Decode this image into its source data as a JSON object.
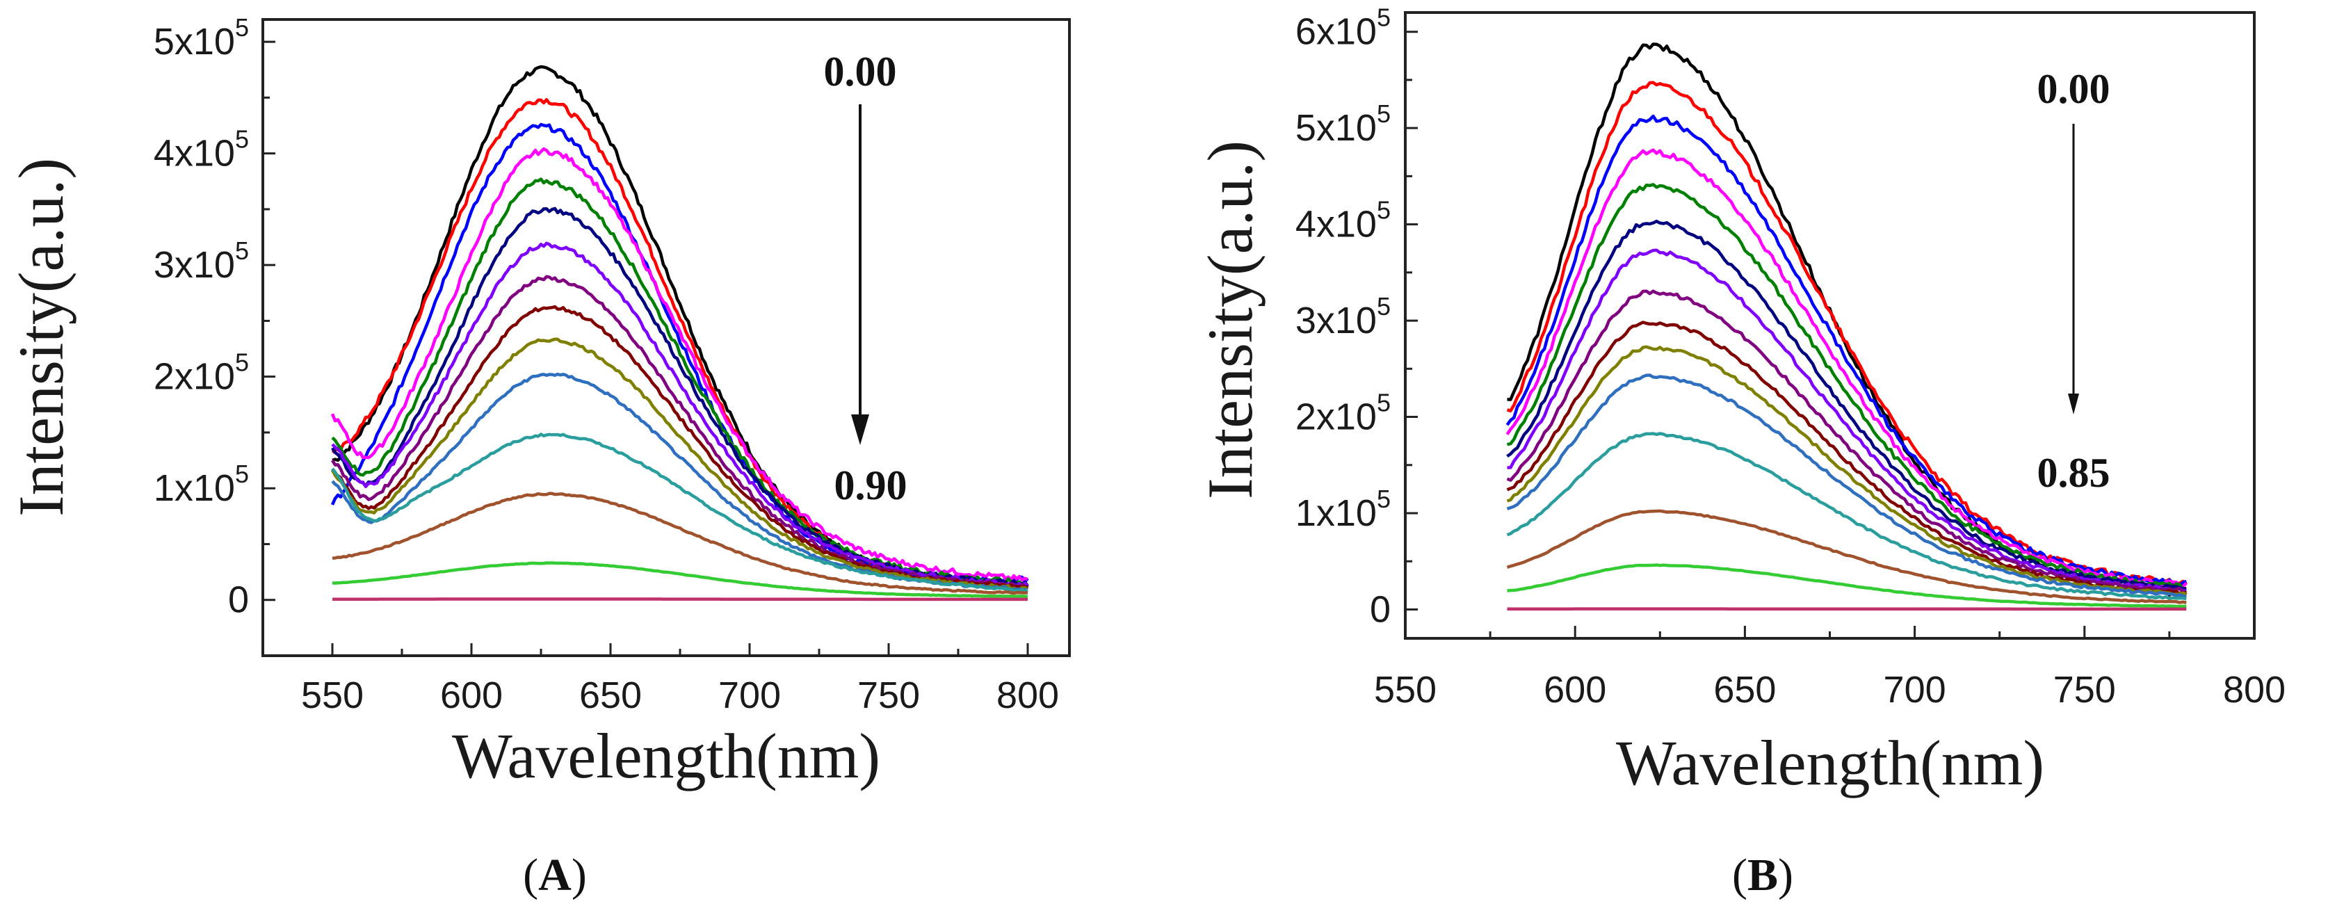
{
  "chart_data": [
    {
      "id": "A",
      "type": "line",
      "panel_label": "A",
      "xlabel": "Wavelength(nm)",
      "ylabel": "Intensity(a.u.)",
      "xlim": [
        525,
        815
      ],
      "ylim": [
        -50000,
        520000
      ],
      "xticks": [
        550,
        600,
        650,
        700,
        750,
        800
      ],
      "yticks": [
        {
          "value": 0,
          "mant": "0",
          "exp": ""
        },
        {
          "value": 100000,
          "mant": "1x10",
          "exp": "5"
        },
        {
          "value": 200000,
          "mant": "2x10",
          "exp": "5"
        },
        {
          "value": 300000,
          "mant": "3x10",
          "exp": "5"
        },
        {
          "value": 400000,
          "mant": "4x10",
          "exp": "5"
        },
        {
          "value": 500000,
          "mant": "5x10",
          "exp": "5"
        }
      ],
      "annotation_top": "0.00",
      "annotation_bottom": "0.90",
      "x_start": 550,
      "x_end": 800,
      "series": [
        {
          "color": "#000000",
          "peak": 475000,
          "peak_x": 625,
          "sigma_l": 36,
          "sigma_r": 44,
          "edge_start": 80000,
          "edge_end": 12000,
          "dip": 0
        },
        {
          "color": "#ff0000",
          "peak": 448000,
          "peak_x": 625,
          "sigma_l": 37,
          "sigma_r": 44,
          "edge_start": 85000,
          "edge_end": 12000,
          "dip": 0
        },
        {
          "color": "#0000ff",
          "peak": 424000,
          "peak_x": 625,
          "sigma_l": 38,
          "sigma_r": 44,
          "edge_start": 30000,
          "edge_end": 18000,
          "dip": 0
        },
        {
          "color": "#ff00ff",
          "peak": 402000,
          "peak_x": 626,
          "sigma_l": 32,
          "sigma_r": 44,
          "edge_start": 110000,
          "edge_end": 18000,
          "dip": 50000
        },
        {
          "color": "#008000",
          "peak": 375000,
          "peak_x": 626,
          "sigma_l": 32,
          "sigma_r": 44,
          "edge_start": 95000,
          "edge_end": 15000,
          "dip": 50000
        },
        {
          "color": "#000080",
          "peak": 350000,
          "peak_x": 627,
          "sigma_l": 32,
          "sigma_r": 44,
          "edge_start": 90000,
          "edge_end": 14000,
          "dip": 50000
        },
        {
          "color": "#8000ff",
          "peak": 318000,
          "peak_x": 627,
          "sigma_l": 32,
          "sigma_r": 44,
          "edge_start": 95000,
          "edge_end": 13000,
          "dip": 50000
        },
        {
          "color": "#800080",
          "peak": 288000,
          "peak_x": 627,
          "sigma_l": 32,
          "sigma_r": 44,
          "edge_start": 85000,
          "edge_end": 12000,
          "dip": 50000
        },
        {
          "color": "#800000",
          "peak": 262000,
          "peak_x": 628,
          "sigma_l": 32,
          "sigma_r": 44,
          "edge_start": 80000,
          "edge_end": 11000,
          "dip": 50000
        },
        {
          "color": "#808000",
          "peak": 233000,
          "peak_x": 628,
          "sigma_l": 32,
          "sigma_r": 44,
          "edge_start": 80000,
          "edge_end": 10000,
          "dip": 50000
        },
        {
          "color": "#2f6fbf",
          "peak": 202000,
          "peak_x": 628,
          "sigma_l": 32,
          "sigma_r": 44,
          "edge_start": 75000,
          "edge_end": 9000,
          "dip": 50000
        },
        {
          "color": "#2a9d9d",
          "peak": 148000,
          "peak_x": 628,
          "sigma_l": 33,
          "sigma_r": 45,
          "edge_start": 85000,
          "edge_end": 8000,
          "dip": 50000
        },
        {
          "color": "#a0522d",
          "peak": 95000,
          "peak_x": 628,
          "sigma_l": 40,
          "sigma_r": 48,
          "edge_start": 28000,
          "edge_end": 6000,
          "dip": 0
        },
        {
          "color": "#33cc33",
          "peak": 33000,
          "peak_x": 628,
          "sigma_l": 45,
          "sigma_r": 50,
          "edge_start": 10000,
          "edge_end": 3000,
          "dip": 0
        },
        {
          "color": "#c0306a",
          "peak": 800,
          "peak_x": 628,
          "sigma_l": 60,
          "sigma_r": 60,
          "edge_start": 500,
          "edge_end": 500,
          "dip": 0
        }
      ]
    },
    {
      "id": "B",
      "type": "line",
      "panel_label": "B",
      "xlabel": "Wavelength(nm)",
      "ylabel": "Intensity(a.u.)",
      "xlim": [
        550,
        800
      ],
      "ylim": [
        -30000,
        620000
      ],
      "xticks": [
        550,
        600,
        650,
        700,
        750,
        800
      ],
      "yticks": [
        {
          "value": 0,
          "mant": "0",
          "exp": ""
        },
        {
          "value": 100000,
          "mant": "1x10",
          "exp": "5"
        },
        {
          "value": 200000,
          "mant": "2x10",
          "exp": "5"
        },
        {
          "value": 300000,
          "mant": "3x10",
          "exp": "5"
        },
        {
          "value": 400000,
          "mant": "4x10",
          "exp": "5"
        },
        {
          "value": 500000,
          "mant": "5x10",
          "exp": "5"
        },
        {
          "value": 600000,
          "mant": "6x10",
          "exp": "5"
        }
      ],
      "annotation_top": "0.00",
      "annotation_bottom": "0.85",
      "x_start": 580,
      "x_end": 780,
      "series": [
        {
          "color": "#000000",
          "peak": 585000,
          "peak_x": 622,
          "sigma_l": 24,
          "sigma_r": 44,
          "edge_start": 115000,
          "edge_end": 15000
        },
        {
          "color": "#ff0000",
          "peak": 545000,
          "peak_x": 622,
          "sigma_l": 24,
          "sigma_r": 46,
          "edge_start": 110000,
          "edge_end": 25000
        },
        {
          "color": "#0000ff",
          "peak": 510000,
          "peak_x": 622,
          "sigma_l": 24,
          "sigma_r": 46,
          "edge_start": 105000,
          "edge_end": 25000
        },
        {
          "color": "#ff00ff",
          "peak": 475000,
          "peak_x": 622,
          "sigma_l": 24,
          "sigma_r": 46,
          "edge_start": 100000,
          "edge_end": 24000
        },
        {
          "color": "#008000",
          "peak": 440000,
          "peak_x": 622,
          "sigma_l": 24,
          "sigma_r": 46,
          "edge_start": 95000,
          "edge_end": 22000
        },
        {
          "color": "#000080",
          "peak": 402000,
          "peak_x": 622,
          "sigma_l": 24,
          "sigma_r": 46,
          "edge_start": 90000,
          "edge_end": 20000
        },
        {
          "color": "#8000ff",
          "peak": 372000,
          "peak_x": 622,
          "sigma_l": 24,
          "sigma_r": 46,
          "edge_start": 85000,
          "edge_end": 19000
        },
        {
          "color": "#800080",
          "peak": 330000,
          "peak_x": 622,
          "sigma_l": 24,
          "sigma_r": 46,
          "edge_start": 80000,
          "edge_end": 18000
        },
        {
          "color": "#800000",
          "peak": 298000,
          "peak_x": 622,
          "sigma_l": 24,
          "sigma_r": 46,
          "edge_start": 75000,
          "edge_end": 16000
        },
        {
          "color": "#808000",
          "peak": 272000,
          "peak_x": 622,
          "sigma_l": 24,
          "sigma_r": 46,
          "edge_start": 70000,
          "edge_end": 15000
        },
        {
          "color": "#2f6fbf",
          "peak": 242000,
          "peak_x": 622,
          "sigma_l": 24,
          "sigma_r": 46,
          "edge_start": 65000,
          "edge_end": 14000
        },
        {
          "color": "#2a9d9d",
          "peak": 182000,
          "peak_x": 622,
          "sigma_l": 24,
          "sigma_r": 46,
          "edge_start": 50000,
          "edge_end": 11000
        },
        {
          "color": "#a0522d",
          "peak": 102000,
          "peak_x": 622,
          "sigma_l": 24,
          "sigma_r": 48,
          "edge_start": 28000,
          "edge_end": 7000
        },
        {
          "color": "#33cc33",
          "peak": 46000,
          "peak_x": 622,
          "sigma_l": 24,
          "sigma_r": 48,
          "edge_start": 12000,
          "edge_end": 3000
        },
        {
          "color": "#c0306a",
          "peak": 600,
          "peak_x": 622,
          "sigma_l": 60,
          "sigma_r": 60,
          "edge_start": 400,
          "edge_end": 400
        }
      ]
    }
  ]
}
